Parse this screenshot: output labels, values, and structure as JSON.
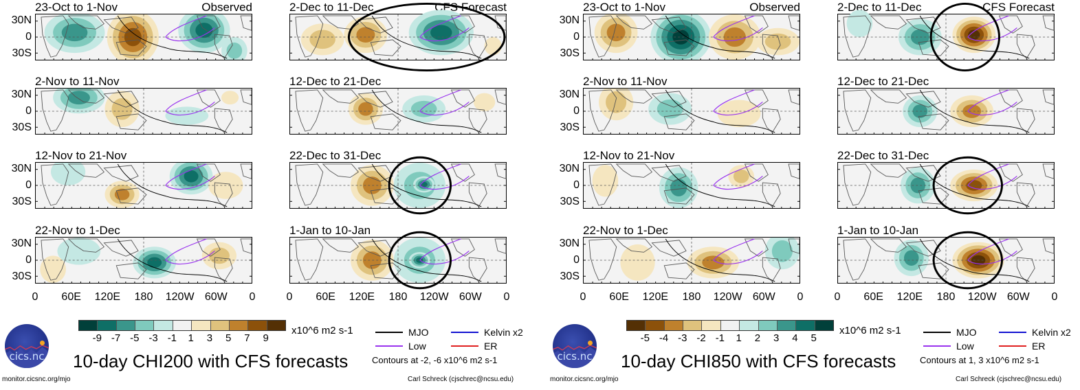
{
  "chart_data": [
    {
      "type": "heatmap",
      "title": "10-day CHI200 with CFS forecasts",
      "variable": "CHI200",
      "units": "x10^6 m2 s-1",
      "colorbar": {
        "levels": [
          -9,
          -7,
          -5,
          -3,
          -1,
          1,
          3,
          5,
          7,
          9
        ],
        "tick_labels": [
          "-9",
          "-7",
          "-5",
          "-3",
          "-1",
          "1",
          "3",
          "5",
          "7",
          "9"
        ],
        "colors": [
          "#01403a",
          "#0e6f66",
          "#3a968b",
          "#7fcabd",
          "#c4e8e3",
          "#f2f2f2",
          "#f5e6c0",
          "#dfc27d",
          "#bf812d",
          "#8c510a",
          "#543005"
        ]
      },
      "legend": [
        {
          "name": "MJO",
          "color": "#000000"
        },
        {
          "name": "Kelvin x2",
          "color": "#1010d0"
        },
        {
          "name": "Low",
          "color": "#9933ee"
        },
        {
          "name": "ER",
          "color": "#e02020"
        }
      ],
      "contour_note": "Contours at -2, -6 x10^6 m2 s-1",
      "columns": [
        {
          "label": "Observed",
          "panels": [
            {
              "title": "23-Oct to 1-Nov"
            },
            {
              "title": "2-Nov to 11-Nov"
            },
            {
              "title": "12-Nov to 21-Nov"
            },
            {
              "title": "22-Nov to 1-Dec"
            }
          ]
        },
        {
          "label": "CFS Forecast",
          "panels": [
            {
              "title": "2-Dec to 11-Dec"
            },
            {
              "title": "12-Dec to 21-Dec"
            },
            {
              "title": "22-Dec to 31-Dec"
            },
            {
              "title": "1-Jan to 10-Jan"
            }
          ]
        }
      ],
      "y_ticks": [
        "30N",
        "0",
        "30S"
      ],
      "x_ticks": [
        "0",
        "60E",
        "120E",
        "180",
        "120W",
        "60W",
        "0"
      ],
      "ylim": [
        "40S",
        "40N"
      ],
      "xlim": [
        "0",
        "360"
      ]
    },
    {
      "type": "heatmap",
      "title": "10-day CHI850 with CFS forecasts",
      "variable": "CHI850",
      "units": "x10^6 m2 s-1",
      "colorbar": {
        "levels": [
          -5,
          -4,
          -3,
          -2,
          -1,
          1,
          2,
          3,
          4,
          5
        ],
        "tick_labels": [
          "-5",
          "-4",
          "-3",
          "-2",
          "-1",
          "1",
          "2",
          "3",
          "4",
          "5"
        ],
        "colors": [
          "#543005",
          "#8c510a",
          "#bf812d",
          "#dfc27d",
          "#f5e6c0",
          "#f2f2f2",
          "#c4e8e3",
          "#7fcabd",
          "#3a968b",
          "#0e6f66",
          "#01403a"
        ]
      },
      "legend": [
        {
          "name": "MJO",
          "color": "#000000"
        },
        {
          "name": "Kelvin x2",
          "color": "#1010d0"
        },
        {
          "name": "Low",
          "color": "#9933ee"
        },
        {
          "name": "ER",
          "color": "#e02020"
        }
      ],
      "contour_note": "Contours at 1, 3 x10^6 m2 s-1",
      "columns": [
        {
          "label": "Observed",
          "panels": [
            {
              "title": "23-Oct to 1-Nov"
            },
            {
              "title": "2-Nov to 11-Nov"
            },
            {
              "title": "12-Nov to 21-Nov"
            },
            {
              "title": "22-Nov to 1-Dec"
            }
          ]
        },
        {
          "label": "CFS Forecast",
          "panels": [
            {
              "title": "2-Dec to 11-Dec"
            },
            {
              "title": "12-Dec to 21-Dec"
            },
            {
              "title": "22-Dec to 31-Dec"
            },
            {
              "title": "1-Jan to 10-Jan"
            }
          ]
        }
      ],
      "y_ticks": [
        "30N",
        "0",
        "30S"
      ],
      "x_ticks": [
        "0",
        "60E",
        "120E",
        "180",
        "120W",
        "60W",
        "0"
      ],
      "ylim": [
        "40S",
        "40N"
      ],
      "xlim": [
        "0",
        "360"
      ]
    }
  ],
  "footer": {
    "logo_text": "cics.nc",
    "website": "monitor.cicsnc.org/mjo",
    "credit": "Carl Schreck (cjschrec@ncsu.edu)"
  }
}
